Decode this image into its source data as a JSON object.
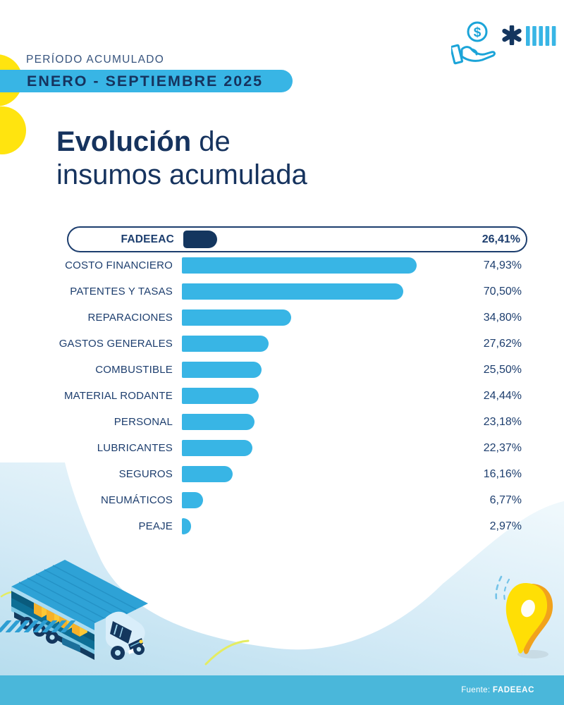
{
  "header": {
    "period_label": "PERÍODO ACUMULADO",
    "period_value": "ENERO - SEPTIEMBRE 2025",
    "title": {
      "emphasis": "Evolución",
      "rest": " de",
      "line2": "insumos acumulada"
    }
  },
  "icons": [
    "hand-coin-icon",
    "asterisk-icon",
    "tally-bars-icon",
    "truck-illustration",
    "map-pin-icon",
    "hatch-marks"
  ],
  "chart_data": {
    "type": "bar",
    "orientation": "horizontal",
    "title": "Evolución de insumos acumulada",
    "period": "ENERO - SEPTIEMBRE 2025",
    "unit": "%",
    "xlim": [
      0,
      80
    ],
    "grid": false,
    "legend": false,
    "highlight_category": "FADEEAC",
    "categories": [
      "FADEEAC",
      "COSTO FINANCIERO",
      "PATENTES Y TASAS",
      "REPARACIONES",
      "GASTOS GENERALES",
      "COMBUSTIBLE",
      "MATERIAL RODANTE",
      "PERSONAL",
      "LUBRICANTES",
      "SEGUROS",
      "NEUMÁTICOS",
      "PEAJE"
    ],
    "values": [
      26.41,
      74.93,
      70.5,
      34.8,
      27.62,
      25.5,
      24.44,
      23.18,
      22.37,
      16.16,
      6.77,
      2.97
    ],
    "value_labels": [
      "26,41%",
      "74,93%",
      "70,50%",
      "34,80%",
      "27,62%",
      "25,50%",
      "24,44%",
      "23,18%",
      "22,37%",
      "16,16%",
      "6,77%",
      "2,97%"
    ]
  },
  "footer": {
    "source_prefix": "Fuente:",
    "source_name": "FADEEAC"
  },
  "colors": {
    "accent_blue": "#38b5e5",
    "navy_text": "#1d3e6e",
    "dark_bar": "#14365f",
    "yellow": "#ffe40f",
    "orange": "#f1a21c",
    "band_blue": "#4ab7da",
    "wave_light_blue": "#b7ddee"
  }
}
